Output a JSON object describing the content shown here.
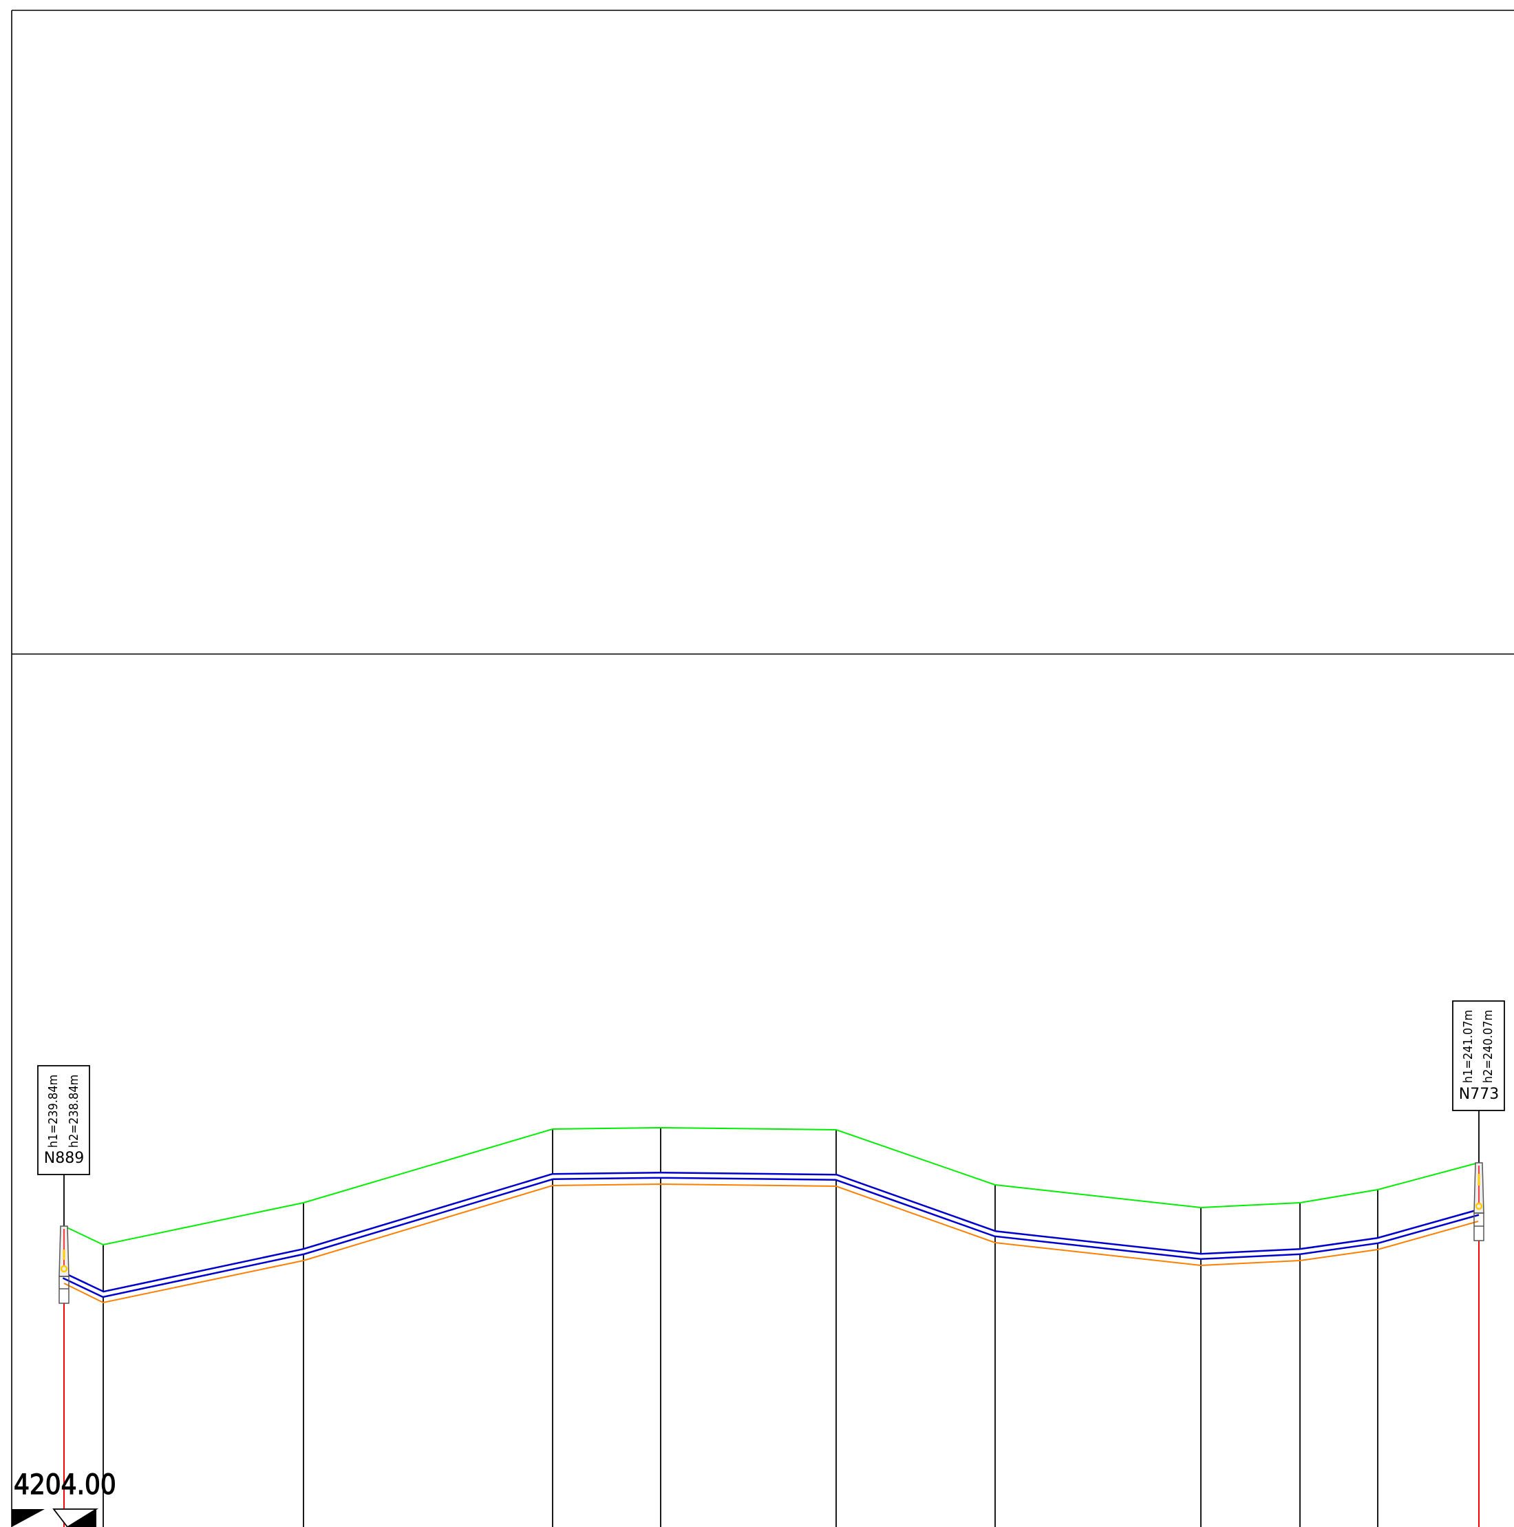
{
  "drawing": {
    "colors": {
      "terrain": "#00ee00",
      "pipe_top": "#0000cc",
      "pipe_bottom": "#0000cc",
      "pipe_gap_line": "#ffffff",
      "bedding": "#ff8000",
      "manhole_axis": "#ff0000",
      "manhole_marker": "#ffcc00",
      "frame": "#000000"
    }
  },
  "manholes": [
    {
      "id": "N889",
      "h1": "h1=239.84m",
      "h2": "h2=238.84m"
    },
    {
      "id": "N773",
      "h1": "h1=241.07m",
      "h2": "h2=240.07m"
    }
  ],
  "bottom_label": "4204.00"
}
